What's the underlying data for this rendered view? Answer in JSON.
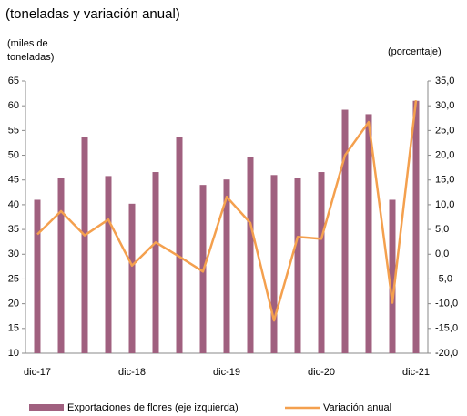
{
  "chart_data": {
    "type": "bar-line",
    "title": "(toneladas y variación anual)",
    "y_label": "(miles de toneladas)",
    "y2_label": "(porcentaje)",
    "categories": [
      "dic-17",
      null,
      null,
      null,
      "dic-18",
      null,
      null,
      null,
      "dic-19",
      null,
      null,
      null,
      "dic-20",
      null,
      null,
      null,
      "dic-21"
    ],
    "series": [
      {
        "name": "Exportaciones de flores (eje izquierda)",
        "color": "#a0607f",
        "type": "bar",
        "values": [
          41.0,
          45.5,
          53.7,
          45.8,
          40.2,
          46.6,
          53.7,
          44.0,
          45.1,
          49.6,
          46.0,
          45.5,
          46.6,
          59.2,
          58.3,
          41.0,
          61.0
        ]
      },
      {
        "name": "Variación anual",
        "color": "#f4a04e",
        "type": "line",
        "axis": "y2",
        "values": [
          4.0,
          8.7,
          3.8,
          7.0,
          -2.3,
          2.4,
          -0.5,
          -3.5,
          11.6,
          6.3,
          -13.4,
          3.5,
          3.1,
          20.0,
          26.7,
          -9.8,
          31.1
        ]
      }
    ],
    "ylim": [
      10,
      65
    ],
    "yticks": [
      10,
      15,
      20,
      25,
      30,
      35,
      40,
      45,
      50,
      55,
      60,
      65
    ],
    "y2lim": [
      -20,
      35
    ],
    "y2ticks": [
      {
        "value": -20,
        "label": "-20,0"
      },
      {
        "value": -15,
        "label": "-15,0"
      },
      {
        "value": -10,
        "label": "-10,0"
      },
      {
        "value": -5,
        "label": "-5,0"
      },
      {
        "value": 0,
        "label": "0,0"
      },
      {
        "value": 5,
        "label": "5,0"
      },
      {
        "value": 10,
        "label": "10,0"
      },
      {
        "value": 15,
        "label": "15,0"
      },
      {
        "value": 20,
        "label": "20,0"
      },
      {
        "value": 25,
        "label": "25,0"
      },
      {
        "value": 30,
        "label": "30,0"
      },
      {
        "value": 35,
        "label": "35,0"
      }
    ],
    "legend": "bottom"
  }
}
